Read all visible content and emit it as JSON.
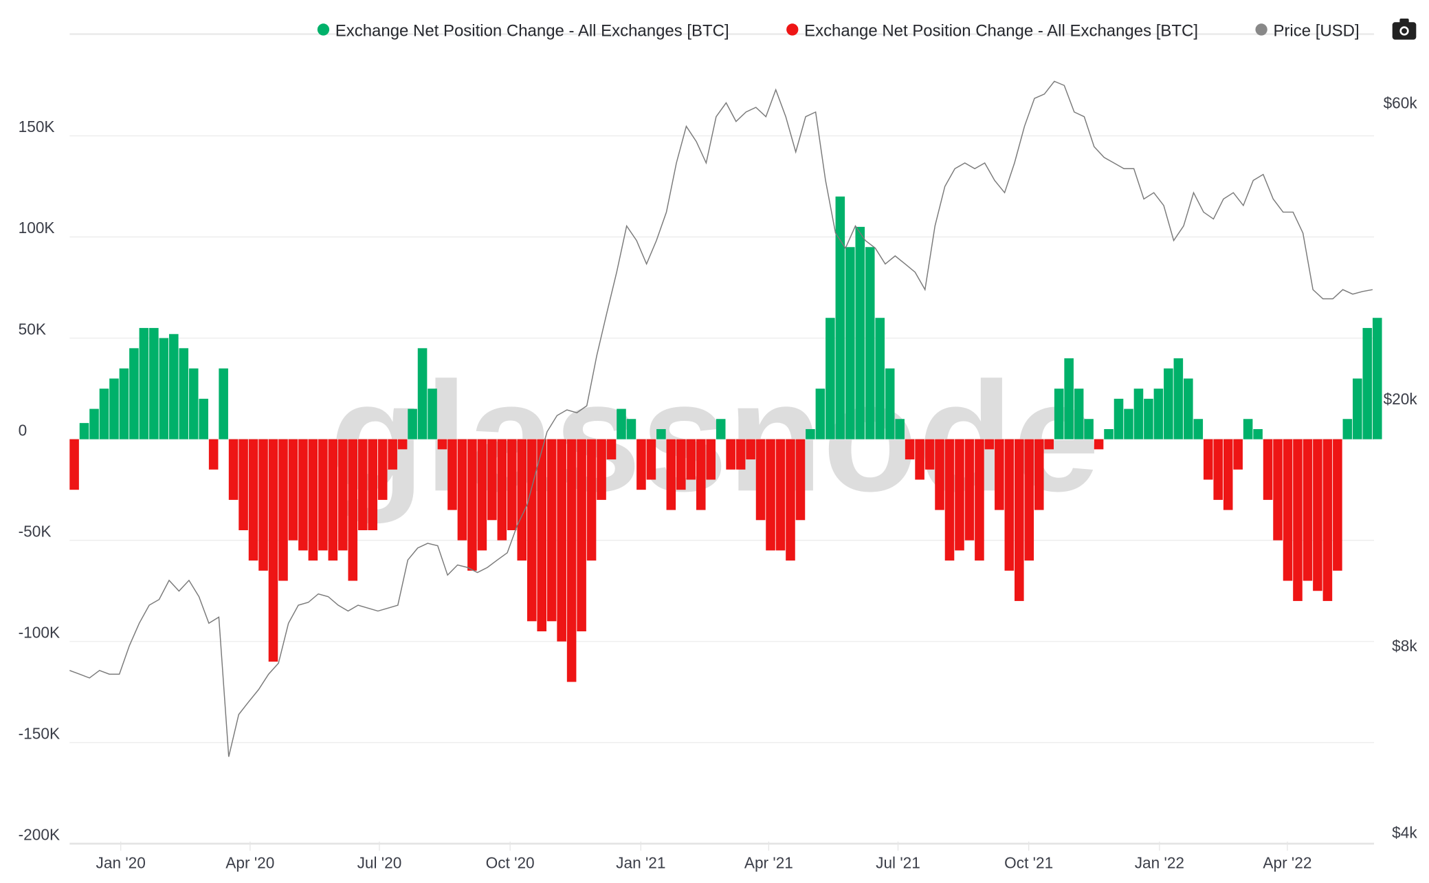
{
  "legend": {
    "inflow_label": "Exchange Net Position Change - All Exchanges [BTC]",
    "outflow_label": "Exchange Net Position Change - All Exchanges [BTC]",
    "price_label": "Price [USD]"
  },
  "watermark": "glassnode",
  "colors": {
    "positive": "#00b16a",
    "negative": "#ee1515",
    "price": "#7a7a7a",
    "grid": "#ececec"
  },
  "chart_data": {
    "type": "bar",
    "title": "",
    "xlabel": "",
    "ylabel": "Exchange Net Position Change [BTC]",
    "y2label": "Price [USD]",
    "x_start": "2019-11-26",
    "x_step_days": 7,
    "ylim": [
      -200000,
      150000
    ],
    "y_ticks": [
      {
        "value": 150000,
        "label": "150K"
      },
      {
        "value": 100000,
        "label": "100K"
      },
      {
        "value": 50000,
        "label": "50K"
      },
      {
        "value": 0,
        "label": "0"
      },
      {
        "value": -50000,
        "label": "-50K"
      },
      {
        "value": -100000,
        "label": "-100K"
      },
      {
        "value": -150000,
        "label": "-150K"
      },
      {
        "value": -200000,
        "label": "-200K"
      }
    ],
    "y2_scale": "log",
    "y2_ticks": [
      {
        "value": 60000,
        "label": "$60k"
      },
      {
        "value": 20000,
        "label": "$20k"
      },
      {
        "value": 8000,
        "label": "$8k"
      },
      {
        "value": 4000,
        "label": "$4k"
      }
    ],
    "x_ticks": [
      {
        "date": "2020-01-01",
        "label": "Jan '20"
      },
      {
        "date": "2020-04-01",
        "label": "Apr '20"
      },
      {
        "date": "2020-07-01",
        "label": "Jul '20"
      },
      {
        "date": "2020-10-01",
        "label": "Oct '20"
      },
      {
        "date": "2021-01-01",
        "label": "Jan '21"
      },
      {
        "date": "2021-04-01",
        "label": "Apr '21"
      },
      {
        "date": "2021-07-01",
        "label": "Jul '21"
      },
      {
        "date": "2021-10-01",
        "label": "Oct '21"
      },
      {
        "date": "2022-01-01",
        "label": "Jan '22"
      },
      {
        "date": "2022-04-01",
        "label": "Apr '22"
      }
    ],
    "x_end": "2022-06-01",
    "net_position_k_btc": [
      -25,
      8,
      15,
      25,
      30,
      35,
      45,
      55,
      55,
      50,
      52,
      45,
      35,
      20,
      -15,
      35,
      -30,
      -45,
      -60,
      -65,
      -110,
      -70,
      -50,
      -55,
      -60,
      -55,
      -60,
      -55,
      -70,
      -45,
      -45,
      -30,
      -15,
      -5,
      15,
      45,
      25,
      -5,
      -35,
      -50,
      -65,
      -55,
      -40,
      -50,
      -45,
      -60,
      -90,
      -95,
      -90,
      -100,
      -120,
      -95,
      -60,
      -30,
      -10,
      15,
      10,
      -25,
      -20,
      5,
      -35,
      -25,
      -20,
      -35,
      -20,
      10,
      -15,
      -15,
      -10,
      -40,
      -55,
      -55,
      -60,
      -40,
      5,
      25,
      60,
      120,
      95,
      105,
      95,
      60,
      35,
      10,
      -10,
      -20,
      -15,
      -35,
      -60,
      -55,
      -50,
      -60,
      -5,
      -35,
      -65,
      -80,
      -60,
      -35,
      -5,
      25,
      40,
      25,
      10,
      -5,
      5,
      20,
      15,
      25,
      20,
      25,
      35,
      40,
      30,
      10,
      -20,
      -30,
      -35,
      -15,
      10,
      5,
      -30,
      -50,
      -70,
      -80,
      -70,
      -75,
      -80,
      -65,
      10,
      30,
      55,
      60
    ],
    "price_k_usd": [
      7.3,
      7.2,
      7.1,
      7.3,
      7.2,
      7.2,
      8.0,
      8.7,
      9.3,
      9.5,
      10.2,
      9.8,
      10.2,
      9.6,
      8.7,
      8.9,
      5.3,
      6.2,
      6.5,
      6.8,
      7.2,
      7.5,
      8.7,
      9.3,
      9.4,
      9.7,
      9.6,
      9.3,
      9.1,
      9.3,
      9.2,
      9.1,
      9.2,
      9.3,
      11.0,
      11.5,
      11.7,
      11.6,
      10.4,
      10.8,
      10.7,
      10.5,
      10.7,
      11.0,
      11.3,
      12.5,
      13.5,
      15.5,
      17.7,
      18.8,
      19.2,
      19.0,
      19.5,
      23.5,
      27.5,
      32,
      38,
      36,
      33,
      36,
      40,
      48,
      55,
      52,
      48,
      57,
      60,
      56,
      58,
      59,
      57,
      63,
      57,
      50,
      57,
      58,
      45,
      37,
      35,
      38,
      36,
      35,
      33,
      34,
      33,
      32,
      30,
      38,
      44,
      47,
      48,
      47,
      48,
      45,
      43,
      48,
      55,
      61,
      62,
      65,
      64,
      58,
      57,
      51,
      49,
      48,
      47,
      47,
      42,
      43,
      41,
      36,
      38,
      43,
      40,
      39,
      42,
      43,
      41,
      45,
      46,
      42,
      40,
      40,
      37,
      30,
      29,
      29,
      30,
      29.5,
      29.8,
      30
    ]
  }
}
